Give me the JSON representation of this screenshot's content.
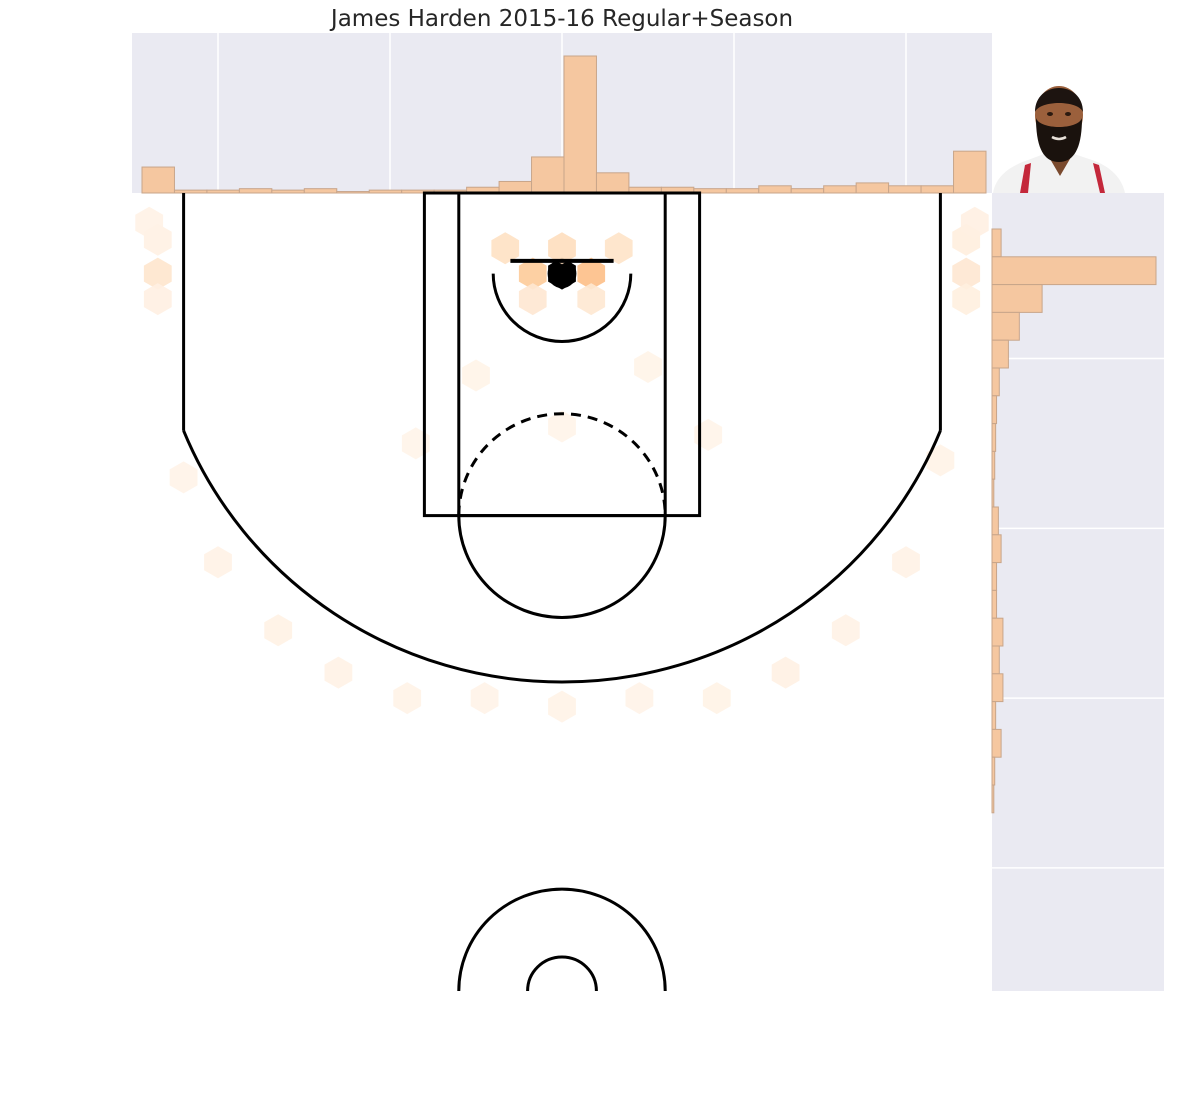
{
  "chart_data": {
    "type": "heatmap",
    "title": "James Harden 2015-16 Regular+Season",
    "xlabel": "",
    "ylabel": "",
    "xlim": [
      -250,
      250
    ],
    "ylim": [
      422.5,
      -47.5
    ],
    "grid": true,
    "axes_tick_labels_visible": false,
    "hexbin": {
      "colormap": "Oranges",
      "max_count": 220,
      "cells": [
        {
          "x": 0,
          "y": 0,
          "count": 220
        },
        {
          "x": -17,
          "y": 0,
          "count": 95
        },
        {
          "x": 17,
          "y": 0,
          "count": 110
        },
        {
          "x": -33,
          "y": -15,
          "count": 55
        },
        {
          "x": 0,
          "y": -15,
          "count": 60
        },
        {
          "x": 33,
          "y": -15,
          "count": 50
        },
        {
          "x": -17,
          "y": 15,
          "count": 40
        },
        {
          "x": 17,
          "y": 15,
          "count": 38
        },
        {
          "x": -235,
          "y": 0,
          "count": 45
        },
        {
          "x": 235,
          "y": 0,
          "count": 40
        },
        {
          "x": -235,
          "y": -20,
          "count": 12
        },
        {
          "x": 235,
          "y": -20,
          "count": 20
        },
        {
          "x": -235,
          "y": 15,
          "count": 14
        },
        {
          "x": 235,
          "y": 15,
          "count": 18
        },
        {
          "x": -240,
          "y": -30,
          "count": 8
        },
        {
          "x": 240,
          "y": -30,
          "count": 14
        },
        {
          "x": -200,
          "y": 170,
          "count": 9
        },
        {
          "x": 200,
          "y": 170,
          "count": 8
        },
        {
          "x": -165,
          "y": 210,
          "count": 10
        },
        {
          "x": 165,
          "y": 210,
          "count": 9
        },
        {
          "x": -130,
          "y": 235,
          "count": 8
        },
        {
          "x": 130,
          "y": 235,
          "count": 12
        },
        {
          "x": -90,
          "y": 250,
          "count": 6
        },
        {
          "x": 90,
          "y": 250,
          "count": 7
        },
        {
          "x": 0,
          "y": 255,
          "count": 6
        },
        {
          "x": -45,
          "y": 250,
          "count": 5
        },
        {
          "x": 45,
          "y": 250,
          "count": 5
        },
        {
          "x": -220,
          "y": 120,
          "count": 5
        },
        {
          "x": 220,
          "y": 110,
          "count": 6
        },
        {
          "x": -50,
          "y": 60,
          "count": 4
        },
        {
          "x": 50,
          "y": 55,
          "count": 4
        },
        {
          "x": -85,
          "y": 100,
          "count": 3
        },
        {
          "x": 85,
          "y": 95,
          "count": 3
        },
        {
          "x": 0,
          "y": 90,
          "count": 3
        }
      ]
    },
    "marginal_x": {
      "type": "bar",
      "values": [
        18,
        2,
        2,
        3,
        2,
        3,
        1,
        2,
        2,
        2,
        4,
        8,
        25,
        95,
        14,
        4,
        4,
        3,
        3,
        5,
        3,
        5,
        7,
        5,
        5,
        29
      ]
    },
    "marginal_y": {
      "type": "bar",
      "values": [
        10,
        180,
        55,
        30,
        18,
        8,
        5,
        4,
        3,
        2,
        7,
        10,
        5,
        5,
        12,
        8,
        12,
        4,
        10,
        3,
        2
      ]
    },
    "colors": {
      "background": "#eaeaf2",
      "gridline": "#ffffff",
      "hist_fill": "#f5c7a0",
      "hist_edge": "#c8a58a",
      "court_line": "#000000"
    }
  }
}
